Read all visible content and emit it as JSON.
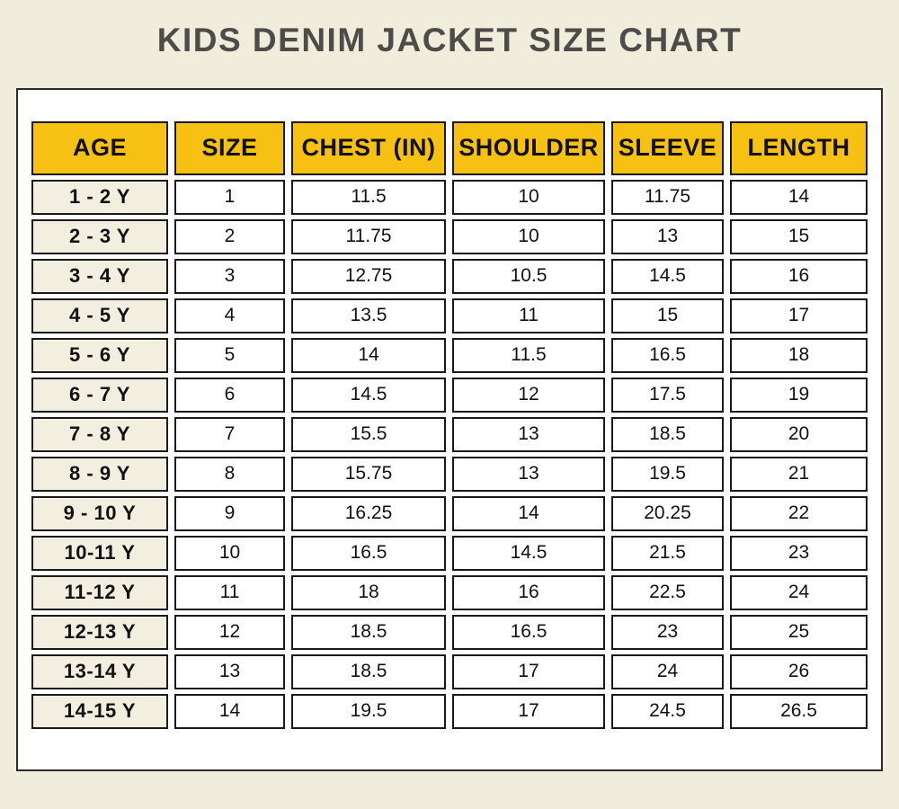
{
  "title": "KIDS DENIM JACKET SIZE CHART",
  "chart_data": {
    "type": "table",
    "title": "KIDS DENIM JACKET SIZE CHART",
    "columns": [
      "AGE",
      "SIZE",
      "CHEST (IN)",
      "SHOULDER",
      "SLEEVE",
      "LENGTH"
    ],
    "rows": [
      [
        "1 - 2 Y",
        "1",
        "11.5",
        "10",
        "11.75",
        "14"
      ],
      [
        "2 - 3 Y",
        "2",
        "11.75",
        "10",
        "13",
        "15"
      ],
      [
        "3 - 4 Y",
        "3",
        "12.75",
        "10.5",
        "14.5",
        "16"
      ],
      [
        "4 - 5 Y",
        "4",
        "13.5",
        "11",
        "15",
        "17"
      ],
      [
        "5 - 6 Y",
        "5",
        "14",
        "11.5",
        "16.5",
        "18"
      ],
      [
        "6 - 7 Y",
        "6",
        "14.5",
        "12",
        "17.5",
        "19"
      ],
      [
        "7 - 8 Y",
        "7",
        "15.5",
        "13",
        "18.5",
        "20"
      ],
      [
        "8 - 9 Y",
        "8",
        "15.75",
        "13",
        "19.5",
        "21"
      ],
      [
        "9 - 10 Y",
        "9",
        "16.25",
        "14",
        "20.25",
        "22"
      ],
      [
        "10-11 Y",
        "10",
        "16.5",
        "14.5",
        "21.5",
        "23"
      ],
      [
        "11-12 Y",
        "11",
        "18",
        "16",
        "22.5",
        "24"
      ],
      [
        "12-13 Y",
        "12",
        "18.5",
        "16.5",
        "23",
        "25"
      ],
      [
        "13-14 Y",
        "13",
        "18.5",
        "17",
        "24",
        "26"
      ],
      [
        "14-15 Y",
        "14",
        "19.5",
        "17",
        "24.5",
        "26.5"
      ]
    ],
    "legend_position": "none",
    "grid": "cell-borders"
  },
  "colors": {
    "page_bg": "#F0EDDD",
    "panel_bg": "#FFFFFF",
    "header_bg": "#F6C112",
    "label_bg": "#F2EFE0",
    "cell_bg": "#FFFFFF",
    "border": "#1A1A1A",
    "panel_border": "#2B2B2B",
    "title_text": "#4D4C48",
    "cell_text": "#111111"
  }
}
